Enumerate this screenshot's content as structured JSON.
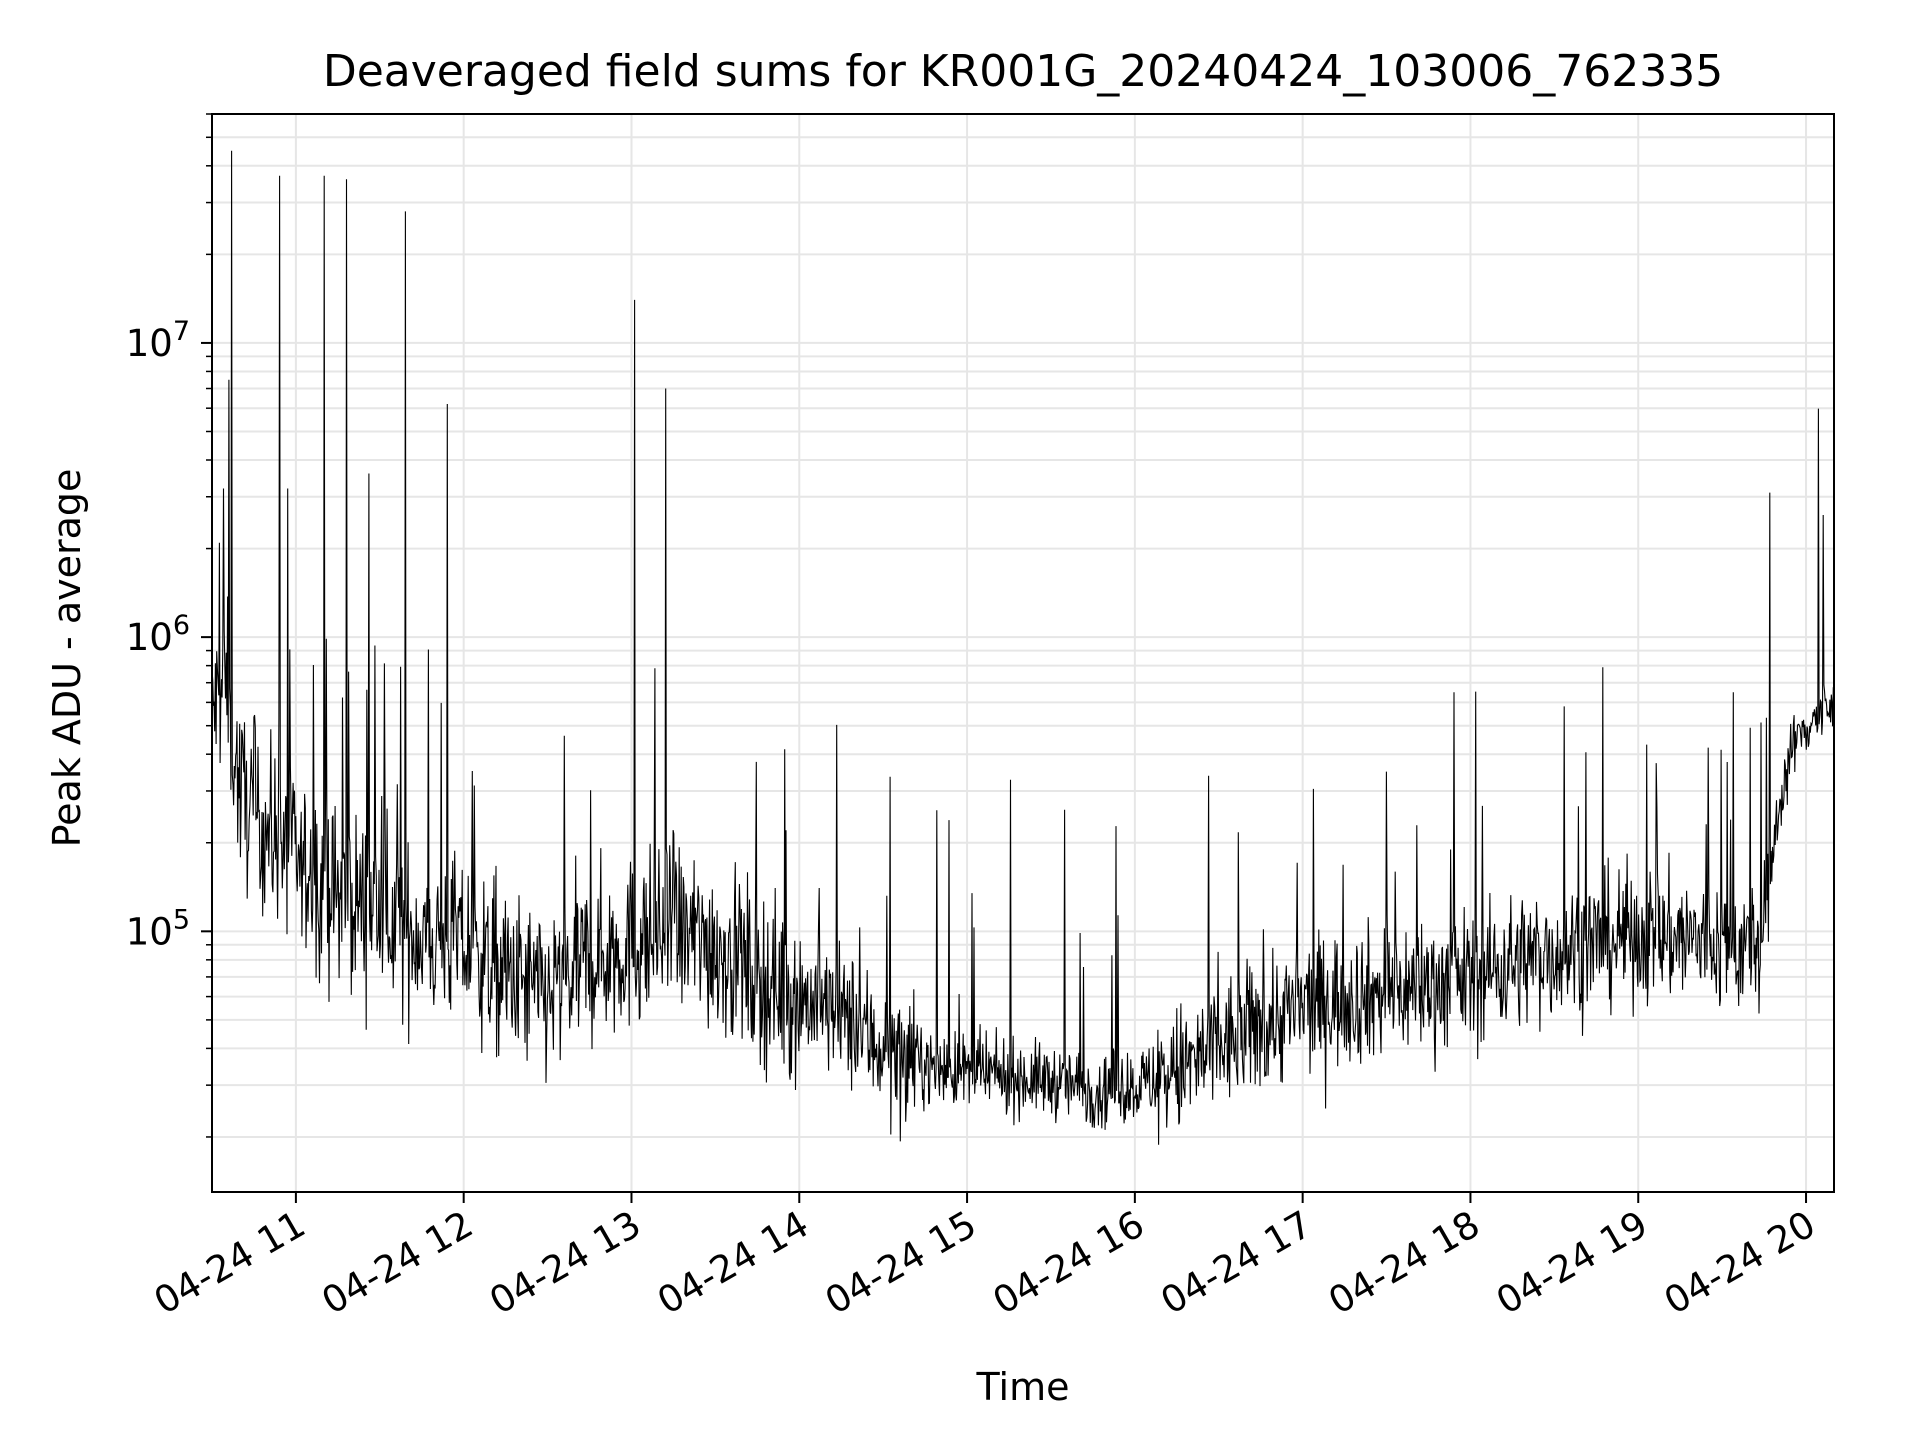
{
  "chart_data": {
    "type": "line",
    "title": "Deaveraged field sums for KR001G_20240424_103006_762335",
    "xlabel": "Time",
    "ylabel": "Peak ADU - average",
    "x_axis_type": "datetime",
    "xlim": [
      "2024-04-24 10:30",
      "2024-04-24 20:10"
    ],
    "x_ticks": [
      {
        "value": "2024-04-24 11:00",
        "label": "04-24 11"
      },
      {
        "value": "2024-04-24 12:00",
        "label": "04-24 12"
      },
      {
        "value": "2024-04-24 13:00",
        "label": "04-24 13"
      },
      {
        "value": "2024-04-24 14:00",
        "label": "04-24 14"
      },
      {
        "value": "2024-04-24 15:00",
        "label": "04-24 15"
      },
      {
        "value": "2024-04-24 16:00",
        "label": "04-24 16"
      },
      {
        "value": "2024-04-24 17:00",
        "label": "04-24 17"
      },
      {
        "value": "2024-04-24 18:00",
        "label": "04-24 18"
      },
      {
        "value": "2024-04-24 19:00",
        "label": "04-24 19"
      },
      {
        "value": "2024-04-24 20:00",
        "label": "04-24 20"
      }
    ],
    "y_scale": "log",
    "ylim": [
      13000,
      60000000
    ],
    "y_ticks": [
      {
        "value": 100000,
        "base": "10",
        "exp": "5"
      },
      {
        "value": 1000000,
        "base": "10",
        "exp": "6"
      },
      {
        "value": 10000000,
        "base": "10",
        "exp": "7"
      }
    ],
    "grid": true,
    "legend": "none",
    "colors": {
      "line": "#000000",
      "grid": "#e6e6e6",
      "axes": "#000000"
    },
    "series": [
      {
        "x": [
          "2024-04-24 10:30",
          "2024-04-24 10:35",
          "2024-04-24 10:40",
          "2024-04-24 10:45",
          "2024-04-24 10:50",
          "2024-04-24 10:55",
          "2024-04-24 11:00",
          "2024-04-24 11:10",
          "2024-04-24 11:20",
          "2024-04-24 11:30",
          "2024-04-24 11:40",
          "2024-04-24 11:50",
          "2024-04-24 12:00",
          "2024-04-24 12:15",
          "2024-04-24 12:30",
          "2024-04-24 12:45",
          "2024-04-24 13:00",
          "2024-04-24 13:15",
          "2024-04-24 13:30",
          "2024-04-24 13:45",
          "2024-04-24 14:00",
          "2024-04-24 14:15",
          "2024-04-24 14:30",
          "2024-04-24 14:45",
          "2024-04-24 15:00",
          "2024-04-24 15:15",
          "2024-04-24 15:30",
          "2024-04-24 15:45",
          "2024-04-24 16:00",
          "2024-04-24 16:15",
          "2024-04-24 16:30",
          "2024-04-24 16:45",
          "2024-04-24 17:00",
          "2024-04-24 17:15",
          "2024-04-24 17:30",
          "2024-04-24 17:45",
          "2024-04-24 18:00",
          "2024-04-24 18:15",
          "2024-04-24 18:30",
          "2024-04-24 18:45",
          "2024-04-24 19:00",
          "2024-04-24 19:15",
          "2024-04-24 19:30",
          "2024-04-24 19:40",
          "2024-04-24 19:45",
          "2024-04-24 19:50",
          "2024-04-24 19:55",
          "2024-04-24 20:00",
          "2024-04-24 20:05",
          "2024-04-24 20:10"
        ],
        "y": [
          550000,
          700000,
          300000,
          250000,
          220000,
          200000,
          170000,
          140000,
          130000,
          120000,
          100000,
          95000,
          90000,
          70000,
          60000,
          80000,
          90000,
          100000,
          90000,
          70000,
          60000,
          52000,
          40000,
          35000,
          33000,
          32000,
          31000,
          29000,
          30000,
          33000,
          40000,
          48000,
          55000,
          60000,
          62000,
          66000,
          70000,
          78000,
          85000,
          92000,
          98000,
          95000,
          90000,
          88000,
          95000,
          260000,
          420000,
          500000,
          550000,
          560000
        ],
        "spikes": [
          {
            "x": "2024-04-24 10:37",
            "y": 45000000
          },
          {
            "x": "2024-04-24 10:36",
            "y": 7500000
          },
          {
            "x": "2024-04-24 10:34",
            "y": 3200000
          },
          {
            "x": "2024-04-24 10:54",
            "y": 37000000
          },
          {
            "x": "2024-04-24 10:57",
            "y": 3200000
          },
          {
            "x": "2024-04-24 11:10",
            "y": 37000000
          },
          {
            "x": "2024-04-24 11:18",
            "y": 36000000
          },
          {
            "x": "2024-04-24 11:26",
            "y": 3600000
          },
          {
            "x": "2024-04-24 11:39",
            "y": 28000000
          },
          {
            "x": "2024-04-24 11:54",
            "y": 6200000
          },
          {
            "x": "2024-04-24 13:01",
            "y": 14000000
          },
          {
            "x": "2024-04-24 13:12",
            "y": 7000000
          },
          {
            "x": "2024-04-24 19:47",
            "y": 3100000
          },
          {
            "x": "2024-04-24 20:06",
            "y": 2600000
          }
        ]
      }
    ]
  }
}
